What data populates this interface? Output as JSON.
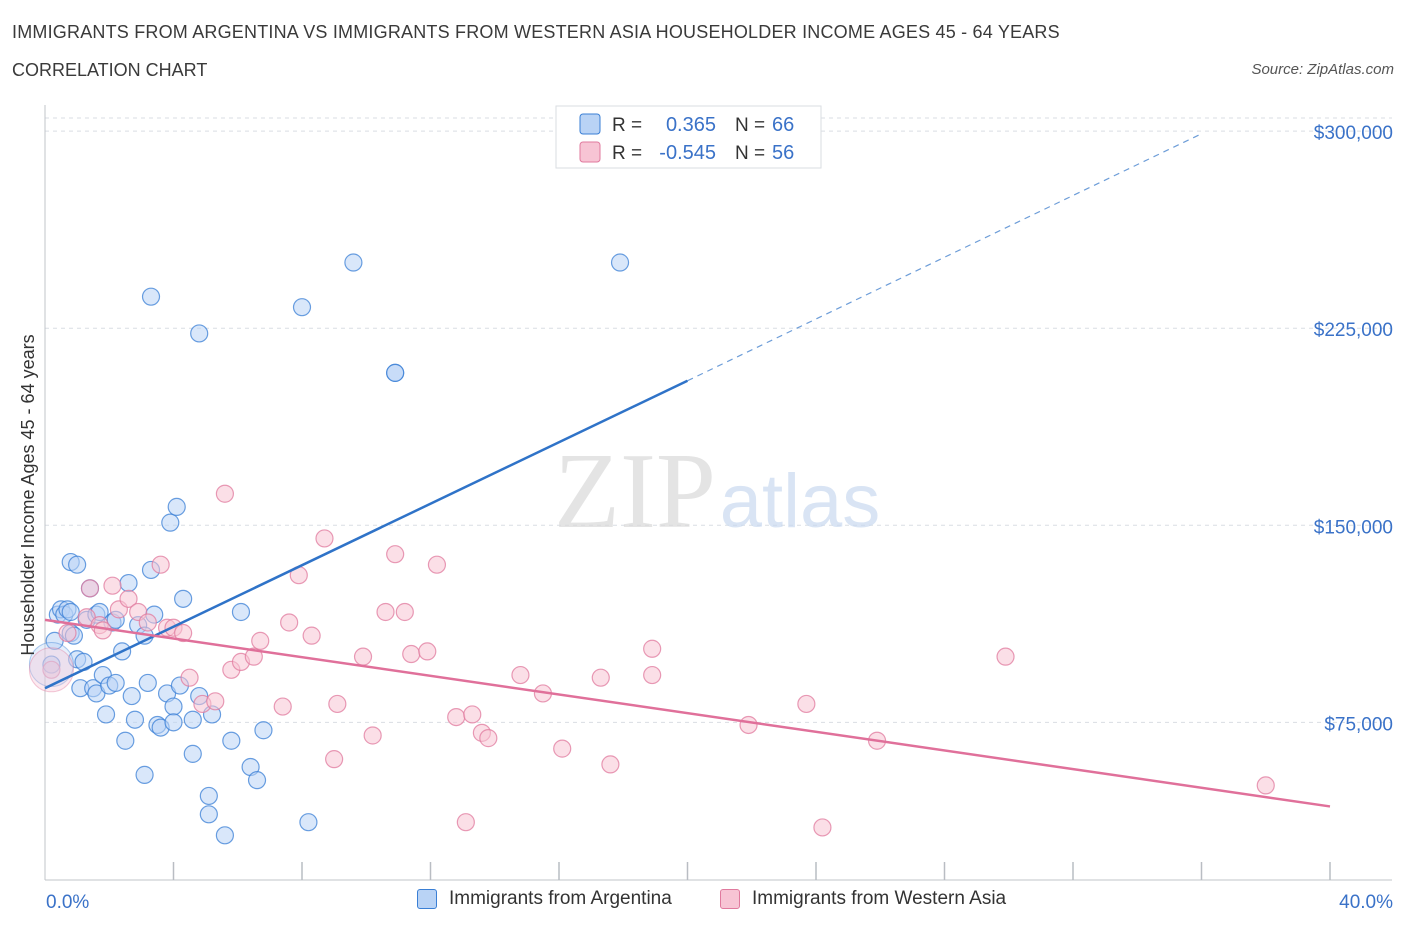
{
  "header": {
    "title": "IMMIGRANTS FROM ARGENTINA VS IMMIGRANTS FROM WESTERN ASIA HOUSEHOLDER INCOME AGES 45 - 64 YEARS",
    "subtitle": "CORRELATION CHART",
    "source": "Source: ZipAtlas.com"
  },
  "watermark": {
    "zip": "ZIP",
    "atlas": "atlas"
  },
  "colors": {
    "blue": "#3a7fd5",
    "blue_fill": "#b9d3f5",
    "blue_line": "#2f73c8",
    "pink": "#e07a9e",
    "pink_fill": "#f7c4d4",
    "pink_line": "#e0709a",
    "axis_text": "#3a72c8",
    "grid": "#d9dde3"
  },
  "legend_top": [
    {
      "r_label": "R =",
      "r_value": "0.365",
      "n_label": "N =",
      "n_value": "66"
    },
    {
      "r_label": "R =",
      "r_value": "-0.545",
      "n_label": "N =",
      "n_value": "56"
    }
  ],
  "legend_bottom": [
    {
      "label": "Immigrants from Argentina"
    },
    {
      "label": "Immigrants from Western Asia"
    }
  ],
  "chart_data": {
    "type": "scatter",
    "xlabel": "",
    "ylabel": "Householder Income Ages 45 - 64 years",
    "xlim": [
      0,
      40
    ],
    "ylim": [
      15000,
      305000
    ],
    "x_tick_labels": [
      "0.0%",
      "40.0%"
    ],
    "y_ticks": [
      75000,
      150000,
      225000,
      300000
    ],
    "y_tick_labels": [
      "$75,000",
      "$150,000",
      "$225,000",
      "$300,000"
    ],
    "grid": true,
    "series": [
      {
        "name": "Immigrants from Argentina",
        "color": "#3a7fd5",
        "trend": {
          "x0": 0,
          "y0": 88000,
          "x1": 20,
          "y1": 205000,
          "x_dash_end": 36,
          "y_dash_end": 299000
        },
        "points": [
          [
            0.2,
            97000
          ],
          [
            0.3,
            106000
          ],
          [
            0.4,
            116000
          ],
          [
            0.5,
            118000
          ],
          [
            0.6,
            116000
          ],
          [
            0.7,
            118000
          ],
          [
            0.8,
            117000
          ],
          [
            0.8,
            109000
          ],
          [
            0.9,
            108000
          ],
          [
            0.8,
            136000
          ],
          [
            1.0,
            135000
          ],
          [
            1.0,
            99000
          ],
          [
            1.1,
            88000
          ],
          [
            1.2,
            98000
          ],
          [
            1.3,
            114000
          ],
          [
            1.4,
            126000
          ],
          [
            1.5,
            88000
          ],
          [
            1.6,
            116000
          ],
          [
            1.6,
            86000
          ],
          [
            1.7,
            117000
          ],
          [
            1.8,
            93000
          ],
          [
            1.9,
            78000
          ],
          [
            2.0,
            89000
          ],
          [
            2.1,
            113000
          ],
          [
            2.2,
            114000
          ],
          [
            2.2,
            90000
          ],
          [
            2.4,
            102000
          ],
          [
            2.5,
            68000
          ],
          [
            2.6,
            128000
          ],
          [
            2.7,
            85000
          ],
          [
            2.8,
            76000
          ],
          [
            2.9,
            112000
          ],
          [
            3.1,
            55000
          ],
          [
            3.1,
            108000
          ],
          [
            3.2,
            90000
          ],
          [
            3.3,
            133000
          ],
          [
            3.4,
            116000
          ],
          [
            3.5,
            74000
          ],
          [
            3.6,
            73000
          ],
          [
            3.8,
            86000
          ],
          [
            3.9,
            151000
          ],
          [
            4.0,
            81000
          ],
          [
            4.0,
            75000
          ],
          [
            4.1,
            157000
          ],
          [
            4.2,
            89000
          ],
          [
            4.3,
            122000
          ],
          [
            4.6,
            76000
          ],
          [
            4.6,
            63000
          ],
          [
            4.8,
            85000
          ],
          [
            5.1,
            47000
          ],
          [
            5.2,
            78000
          ],
          [
            5.1,
            40000
          ],
          [
            5.6,
            32000
          ],
          [
            5.8,
            68000
          ],
          [
            6.1,
            117000
          ],
          [
            6.4,
            58000
          ],
          [
            6.6,
            53000
          ],
          [
            6.8,
            72000
          ],
          [
            3.3,
            237000
          ],
          [
            4.8,
            223000
          ],
          [
            8.0,
            233000
          ],
          [
            8.2,
            37000
          ],
          [
            9.6,
            250000
          ],
          [
            10.9,
            208000
          ],
          [
            10.9,
            208000
          ],
          [
            17.9,
            250000
          ]
        ]
      },
      {
        "name": "Immigrants from Western Asia",
        "color": "#e07a9e",
        "trend": {
          "x0": 0,
          "y0": 114000,
          "x1": 40,
          "y1": 43000
        },
        "points": [
          [
            0.2,
            95000
          ],
          [
            0.7,
            109000
          ],
          [
            1.3,
            115000
          ],
          [
            1.4,
            126000
          ],
          [
            1.7,
            112000
          ],
          [
            1.8,
            110000
          ],
          [
            2.1,
            127000
          ],
          [
            2.3,
            118000
          ],
          [
            2.6,
            122000
          ],
          [
            2.9,
            117000
          ],
          [
            3.2,
            113000
          ],
          [
            3.6,
            135000
          ],
          [
            3.8,
            111000
          ],
          [
            4.0,
            111000
          ],
          [
            4.3,
            109000
          ],
          [
            4.5,
            92000
          ],
          [
            4.9,
            82000
          ],
          [
            5.3,
            83000
          ],
          [
            5.6,
            162000
          ],
          [
            5.8,
            95000
          ],
          [
            6.1,
            98000
          ],
          [
            6.5,
            100000
          ],
          [
            6.7,
            106000
          ],
          [
            7.4,
            81000
          ],
          [
            7.6,
            113000
          ],
          [
            7.9,
            131000
          ],
          [
            8.3,
            108000
          ],
          [
            8.7,
            145000
          ],
          [
            9.0,
            61000
          ],
          [
            9.1,
            82000
          ],
          [
            9.9,
            100000
          ],
          [
            10.2,
            70000
          ],
          [
            10.6,
            117000
          ],
          [
            10.9,
            139000
          ],
          [
            11.2,
            117000
          ],
          [
            11.4,
            101000
          ],
          [
            11.9,
            102000
          ],
          [
            12.2,
            135000
          ],
          [
            12.8,
            77000
          ],
          [
            13.1,
            37000
          ],
          [
            13.3,
            78000
          ],
          [
            13.6,
            71000
          ],
          [
            13.8,
            69000
          ],
          [
            14.8,
            93000
          ],
          [
            15.5,
            86000
          ],
          [
            16.1,
            65000
          ],
          [
            17.3,
            92000
          ],
          [
            17.6,
            59000
          ],
          [
            18.9,
            93000
          ],
          [
            18.9,
            103000
          ],
          [
            21.9,
            74000
          ],
          [
            23.7,
            82000
          ],
          [
            24.2,
            35000
          ],
          [
            25.9,
            68000
          ],
          [
            29.9,
            100000
          ],
          [
            38.0,
            51000
          ]
        ]
      }
    ]
  }
}
